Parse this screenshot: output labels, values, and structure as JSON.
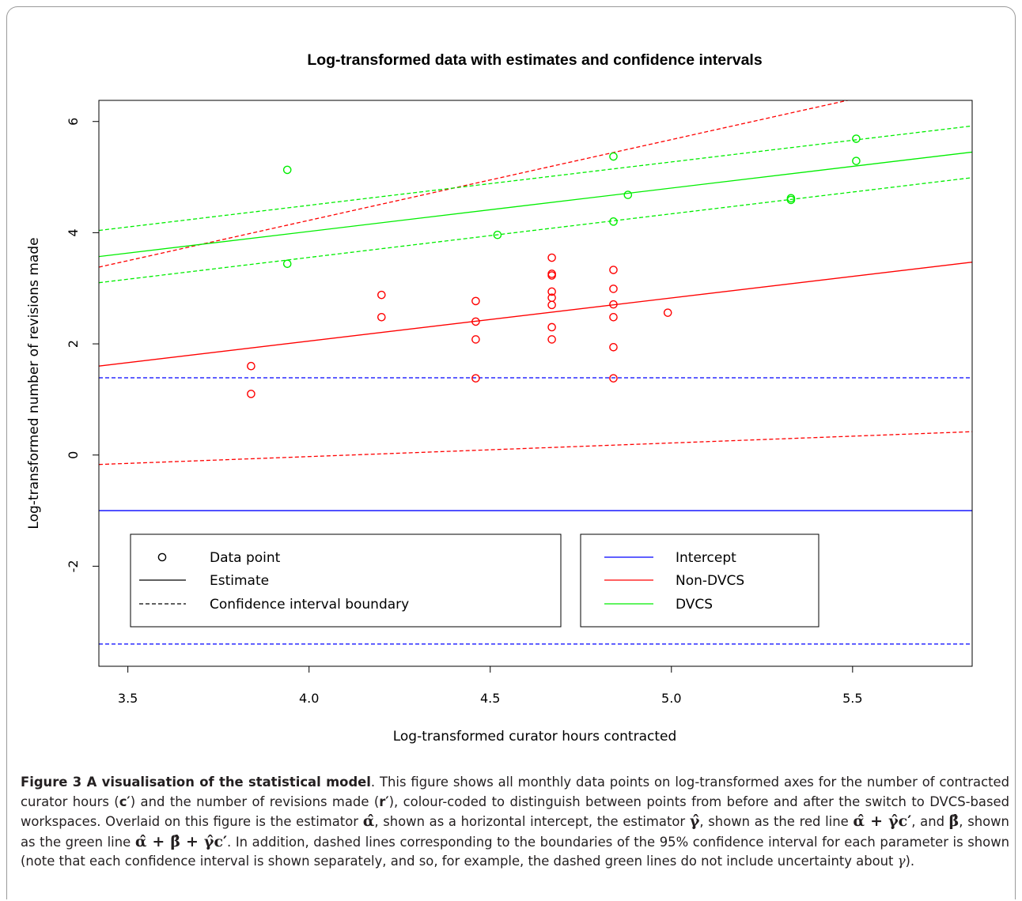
{
  "chart_data": {
    "type": "scatter",
    "title": "Log-transformed data with estimates and confidence intervals",
    "xlabel": "Log-transformed curator hours contracted",
    "ylabel": "Log-transformed number of revisions made",
    "xlim": [
      3.42,
      5.83
    ],
    "ylim": [
      -3.8,
      6.38
    ],
    "x_ticks": [
      3.5,
      4.0,
      4.5,
      5.0,
      5.5
    ],
    "x_tick_labels": [
      "3.5",
      "4.0",
      "4.5",
      "5.0",
      "5.5"
    ],
    "y_ticks": [
      -2,
      0,
      2,
      4,
      6
    ],
    "y_tick_labels": [
      "-2",
      "0",
      "2",
      "4",
      "6"
    ],
    "grid": false,
    "colors": {
      "intercept": "#0000ff",
      "non_dvcs": "#ff0000",
      "dvcs": "#00ee00",
      "axis": "#000000"
    },
    "series": [
      {
        "name": "Non-DVCS",
        "kind": "points",
        "color": "#ff0000",
        "points": [
          [
            3.84,
            1.6
          ],
          [
            3.84,
            1.1
          ],
          [
            4.2,
            2.88
          ],
          [
            4.2,
            2.48
          ],
          [
            4.46,
            2.77
          ],
          [
            4.46,
            2.4
          ],
          [
            4.46,
            2.08
          ],
          [
            4.46,
            1.38
          ],
          [
            4.67,
            3.55
          ],
          [
            4.67,
            3.26
          ],
          [
            4.67,
            3.23
          ],
          [
            4.67,
            2.94
          ],
          [
            4.67,
            2.83
          ],
          [
            4.67,
            2.7
          ],
          [
            4.67,
            2.3
          ],
          [
            4.67,
            2.08
          ],
          [
            4.84,
            3.33
          ],
          [
            4.84,
            2.99
          ],
          [
            4.84,
            2.71
          ],
          [
            4.84,
            2.48
          ],
          [
            4.84,
            1.94
          ],
          [
            4.84,
            1.38
          ],
          [
            4.99,
            2.56
          ]
        ]
      },
      {
        "name": "DVCS",
        "kind": "points",
        "color": "#00ee00",
        "points": [
          [
            3.94,
            5.13
          ],
          [
            3.94,
            3.44
          ],
          [
            4.52,
            3.96
          ],
          [
            4.84,
            5.37
          ],
          [
            4.84,
            4.2
          ],
          [
            4.88,
            4.68
          ],
          [
            5.33,
            4.62
          ],
          [
            5.33,
            4.59
          ],
          [
            5.51,
            5.69
          ],
          [
            5.51,
            5.29
          ]
        ]
      }
    ],
    "lines": [
      {
        "name": "Intercept",
        "style": "solid",
        "color": "#0000ff",
        "x": [
          3.42,
          5.83
        ],
        "y": [
          -1.0,
          -1.0
        ]
      },
      {
        "name": "Intercept",
        "style": "dashed",
        "color": "#0000ff",
        "x": [
          3.42,
          5.83
        ],
        "y": [
          1.39,
          1.39
        ]
      },
      {
        "name": "Intercept",
        "style": "dashed",
        "color": "#0000ff",
        "x": [
          3.42,
          5.83
        ],
        "y": [
          -3.4,
          -3.4
        ]
      },
      {
        "name": "Non-DVCS",
        "style": "solid",
        "color": "#ff0000",
        "x": [
          3.42,
          5.83
        ],
        "y": [
          1.6,
          3.47
        ]
      },
      {
        "name": "Non-DVCS",
        "style": "dashed",
        "color": "#ff0000",
        "x": [
          3.42,
          5.83
        ],
        "y": [
          3.38,
          6.88
        ]
      },
      {
        "name": "Non-DVCS",
        "style": "dashed",
        "color": "#ff0000",
        "x": [
          3.42,
          5.83
        ],
        "y": [
          -0.17,
          0.42
        ]
      },
      {
        "name": "DVCS",
        "style": "solid",
        "color": "#00ee00",
        "x": [
          3.42,
          5.83
        ],
        "y": [
          3.57,
          5.45
        ]
      },
      {
        "name": "DVCS",
        "style": "dashed",
        "color": "#00ee00",
        "x": [
          3.42,
          5.83
        ],
        "y": [
          4.04,
          5.92
        ]
      },
      {
        "name": "DVCS",
        "style": "dashed",
        "color": "#00ee00",
        "x": [
          3.42,
          5.83
        ],
        "y": [
          3.1,
          4.99
        ]
      }
    ],
    "legend": {
      "placement": "bottom-center",
      "left_box": {
        "entries": [
          {
            "label": "Data point",
            "symbol": "circle"
          },
          {
            "label": "Estimate",
            "symbol": "solid"
          },
          {
            "label": "Confidence interval boundary",
            "symbol": "dashed"
          }
        ]
      },
      "right_box": {
        "entries": [
          {
            "label": "Intercept",
            "color": "#0000ff"
          },
          {
            "label": "Non-DVCS",
            "color": "#ff0000"
          },
          {
            "label": "DVCS",
            "color": "#00ee00"
          }
        ]
      }
    }
  },
  "caption": {
    "heading": "Figure 3 A visualisation of the statistical model",
    "p1": ". This figure shows all monthly data points on log-transformed axes for the number of contracted curator hours (",
    "c_prime": "c′",
    "p2": ") and the number of revisions made (",
    "r_prime": "r′",
    "p3": "), colour-coded to distinguish between points from before and after the switch to DVCS-based workspaces. Overlaid on this figure is the estimator",
    "alpha_hat": "α̂",
    "p4": ", shown as a horizontal intercept, the estimator",
    "gamma_hat": "γ̂",
    "p5": ", shown as the red line",
    "red_formula": "α̂ + γ̂c′",
    "p6": ", and",
    "beta_hat": "β̂",
    "p7": ", shown as the green line",
    "green_formula": "α̂ + β̂ + γ̂c′",
    "p8": ". In addition, dashed lines corresponding to the boundaries of the 95% confidence interval for each parameter is shown (note that each confidence interval is shown separately, and so, for example, the dashed green lines do not include uncertainty about",
    "gamma": "γ",
    "p9": ")."
  }
}
